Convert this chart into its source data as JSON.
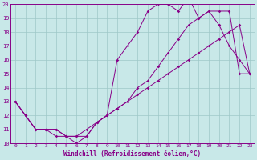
{
  "xlabel": "Windchill (Refroidissement éolien,°C)",
  "xlim": [
    -0.5,
    23.5
  ],
  "ylim": [
    10,
    20
  ],
  "yticks": [
    10,
    11,
    12,
    13,
    14,
    15,
    16,
    17,
    18,
    19,
    20
  ],
  "xticks": [
    0,
    1,
    2,
    3,
    4,
    5,
    6,
    7,
    8,
    9,
    10,
    11,
    12,
    13,
    14,
    15,
    16,
    17,
    18,
    19,
    20,
    21,
    22,
    23
  ],
  "bg_color": "#c8e8e8",
  "line_color": "#880088",
  "grid_color": "#9ec8c8",
  "lines": [
    {
      "x": [
        0,
        1,
        2,
        3,
        4,
        5,
        6,
        7,
        8,
        9,
        10,
        11,
        12,
        13,
        14,
        15,
        16,
        17,
        18,
        19,
        20,
        21,
        22,
        23
      ],
      "y": [
        13,
        12,
        11,
        11,
        10.5,
        10.5,
        10,
        10.5,
        11.5,
        12,
        16,
        17,
        18,
        19.5,
        20,
        20,
        19.5,
        20.5,
        19,
        19.5,
        18.5,
        17,
        16,
        15
      ]
    },
    {
      "x": [
        0,
        1,
        2,
        3,
        4,
        5,
        6,
        7,
        8,
        9,
        10,
        11,
        12,
        13,
        14,
        15,
        16,
        17,
        18,
        19,
        20,
        21,
        22,
        23
      ],
      "y": [
        13,
        12,
        11,
        11,
        11,
        10.5,
        10.5,
        11,
        11.5,
        12,
        12.5,
        13,
        13.5,
        14,
        14.5,
        15,
        15.5,
        16,
        16.5,
        17,
        17.5,
        18,
        18.5,
        15
      ]
    },
    {
      "x": [
        0,
        1,
        2,
        3,
        4,
        5,
        6,
        7,
        8,
        9,
        10,
        11,
        12,
        13,
        14,
        15,
        16,
        17,
        18,
        19,
        20,
        21,
        22,
        23
      ],
      "y": [
        13,
        12,
        11,
        11,
        11,
        10.5,
        10.5,
        10.5,
        11.5,
        12,
        12.5,
        13,
        14,
        14.5,
        15.5,
        16.5,
        17.5,
        18.5,
        19,
        19.5,
        19.5,
        19.5,
        15,
        15
      ]
    }
  ]
}
